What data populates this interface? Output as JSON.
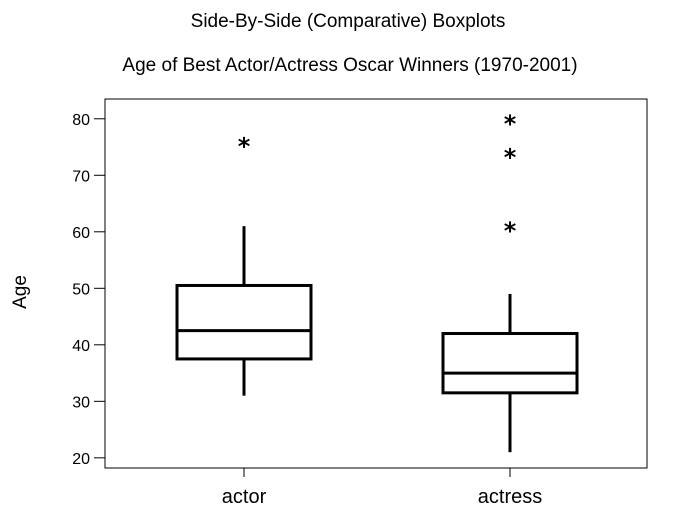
{
  "chart_data": {
    "type": "boxplot",
    "title": "Side-By-Side (Comparative) Boxplots",
    "subtitle": "Age of Best Actor/Actress Oscar Winners (1970-2001)",
    "xlabel": "",
    "ylabel": "Age",
    "ylim": [
      18.2,
      83.5
    ],
    "yticks": [
      20,
      30,
      40,
      50,
      60,
      70,
      80
    ],
    "grid": false,
    "categories": [
      "actor",
      "actress"
    ],
    "boxes": [
      {
        "category": "actor",
        "whisker_low": 31,
        "q1": 37.5,
        "median": 42.5,
        "q3": 50.5,
        "whisker_high": 61,
        "outliers": [
          76
        ]
      },
      {
        "category": "actress",
        "whisker_low": 21,
        "q1": 31.5,
        "median": 35,
        "q3": 42,
        "whisker_high": 49,
        "outliers": [
          61,
          74,
          80
        ]
      }
    ]
  }
}
